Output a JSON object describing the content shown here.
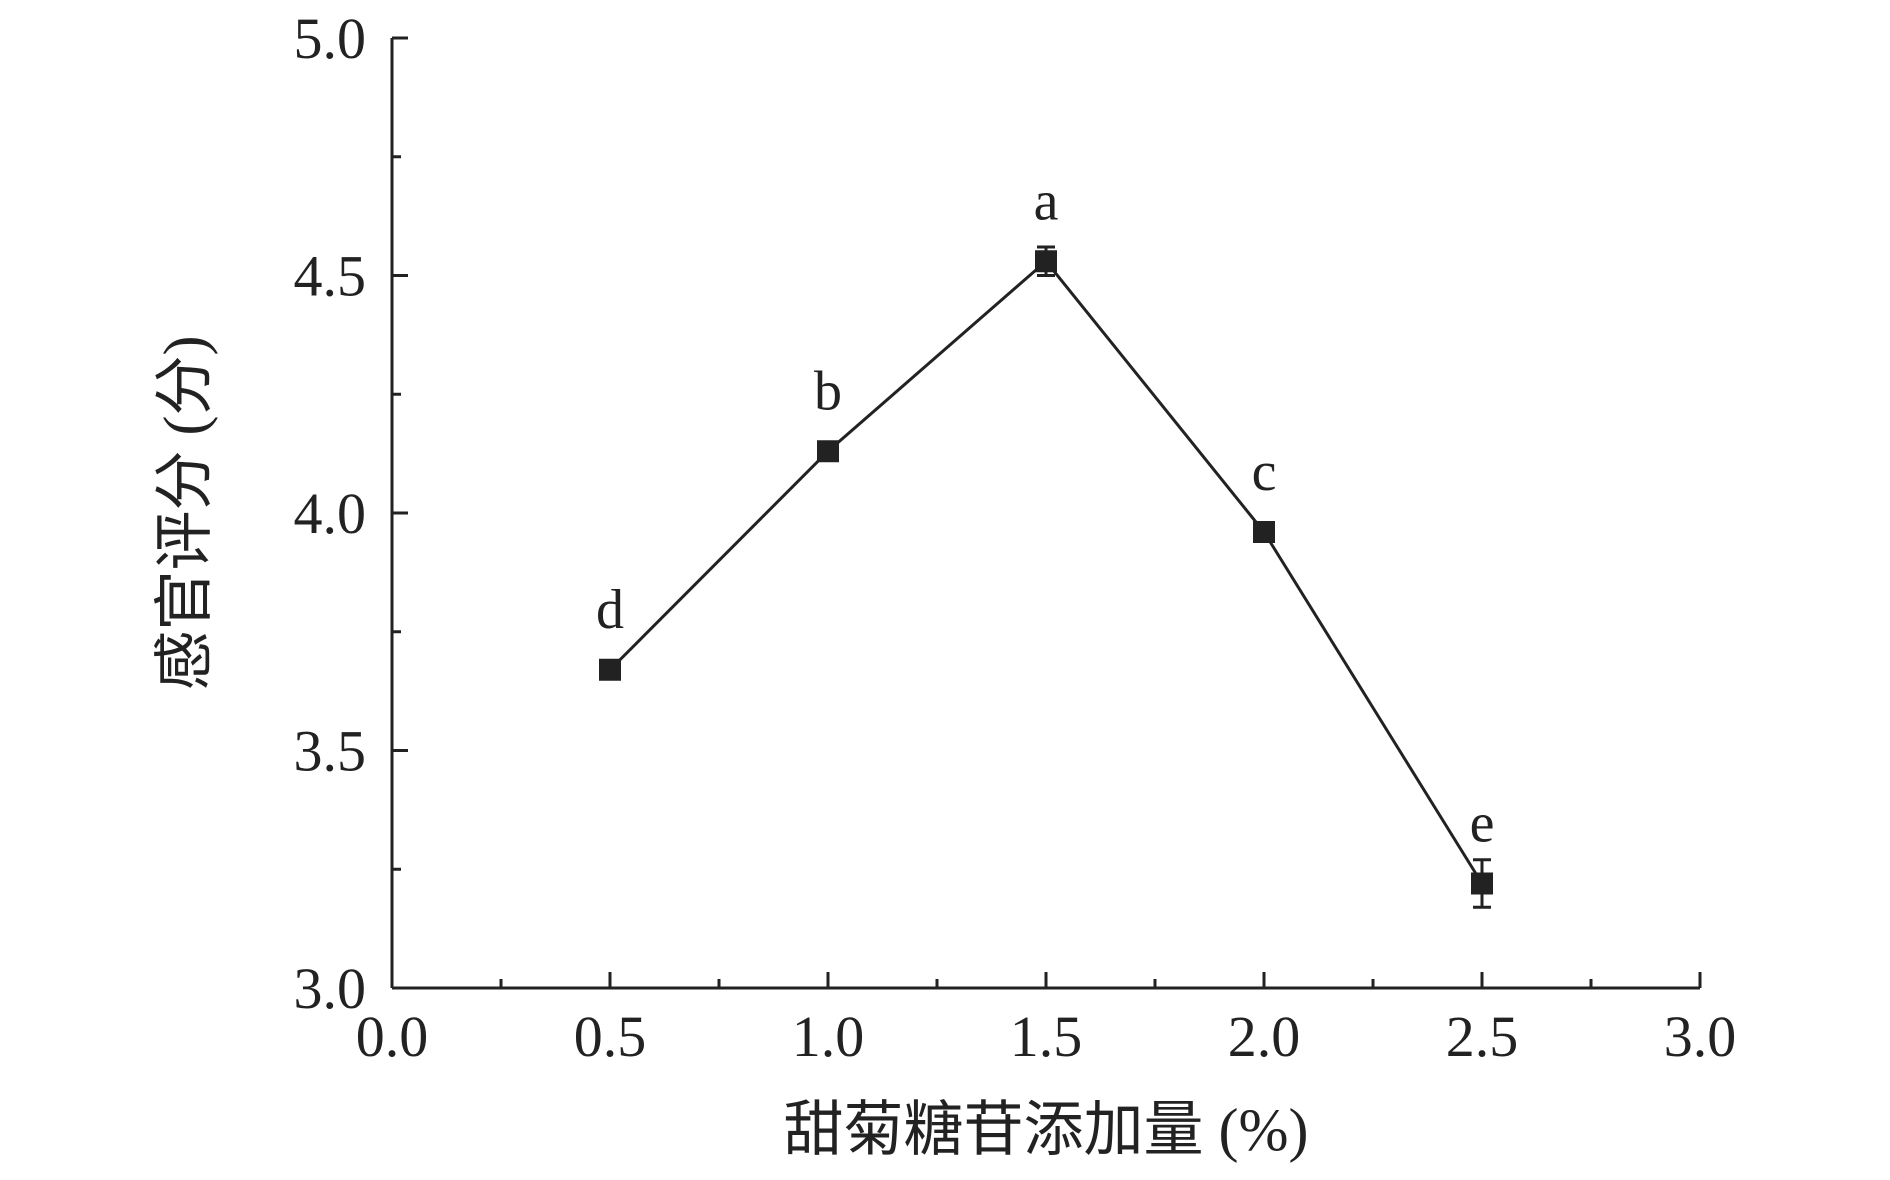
{
  "chart_data": {
    "type": "line",
    "title": "",
    "xlabel": "甜菊糖苷添加量 (%)",
    "ylabel": "感官评分 (分)",
    "xlim": [
      0.0,
      3.0
    ],
    "ylim": [
      3.0,
      5.0
    ],
    "x_major_ticks": [
      0.0,
      0.5,
      1.0,
      1.5,
      2.0,
      2.5,
      3.0
    ],
    "x_minor_ticks": [
      0.25,
      0.75,
      1.25,
      1.75,
      2.25,
      2.75
    ],
    "x_tick_labels": [
      "0.0",
      "0.5",
      "1.0",
      "1.5",
      "2.0",
      "2.5",
      "3.0"
    ],
    "y_major_ticks": [
      3.0,
      3.5,
      4.0,
      4.5,
      5.0
    ],
    "y_minor_ticks": [
      3.25,
      3.75,
      4.25,
      4.75
    ],
    "y_tick_labels": [
      "3.0",
      "3.5",
      "4.0",
      "4.5",
      "5.0"
    ],
    "grid": false,
    "series": [
      {
        "x": [
          0.5,
          1.0,
          1.5,
          2.0,
          2.5
        ],
        "y": [
          3.67,
          4.13,
          4.53,
          3.96,
          3.22
        ],
        "error": [
          0.01,
          0.01,
          0.03,
          0.02,
          0.05
        ],
        "labels": [
          "d",
          "b",
          "a",
          "c",
          "e"
        ],
        "color": "#222222",
        "marker": "square"
      }
    ]
  }
}
